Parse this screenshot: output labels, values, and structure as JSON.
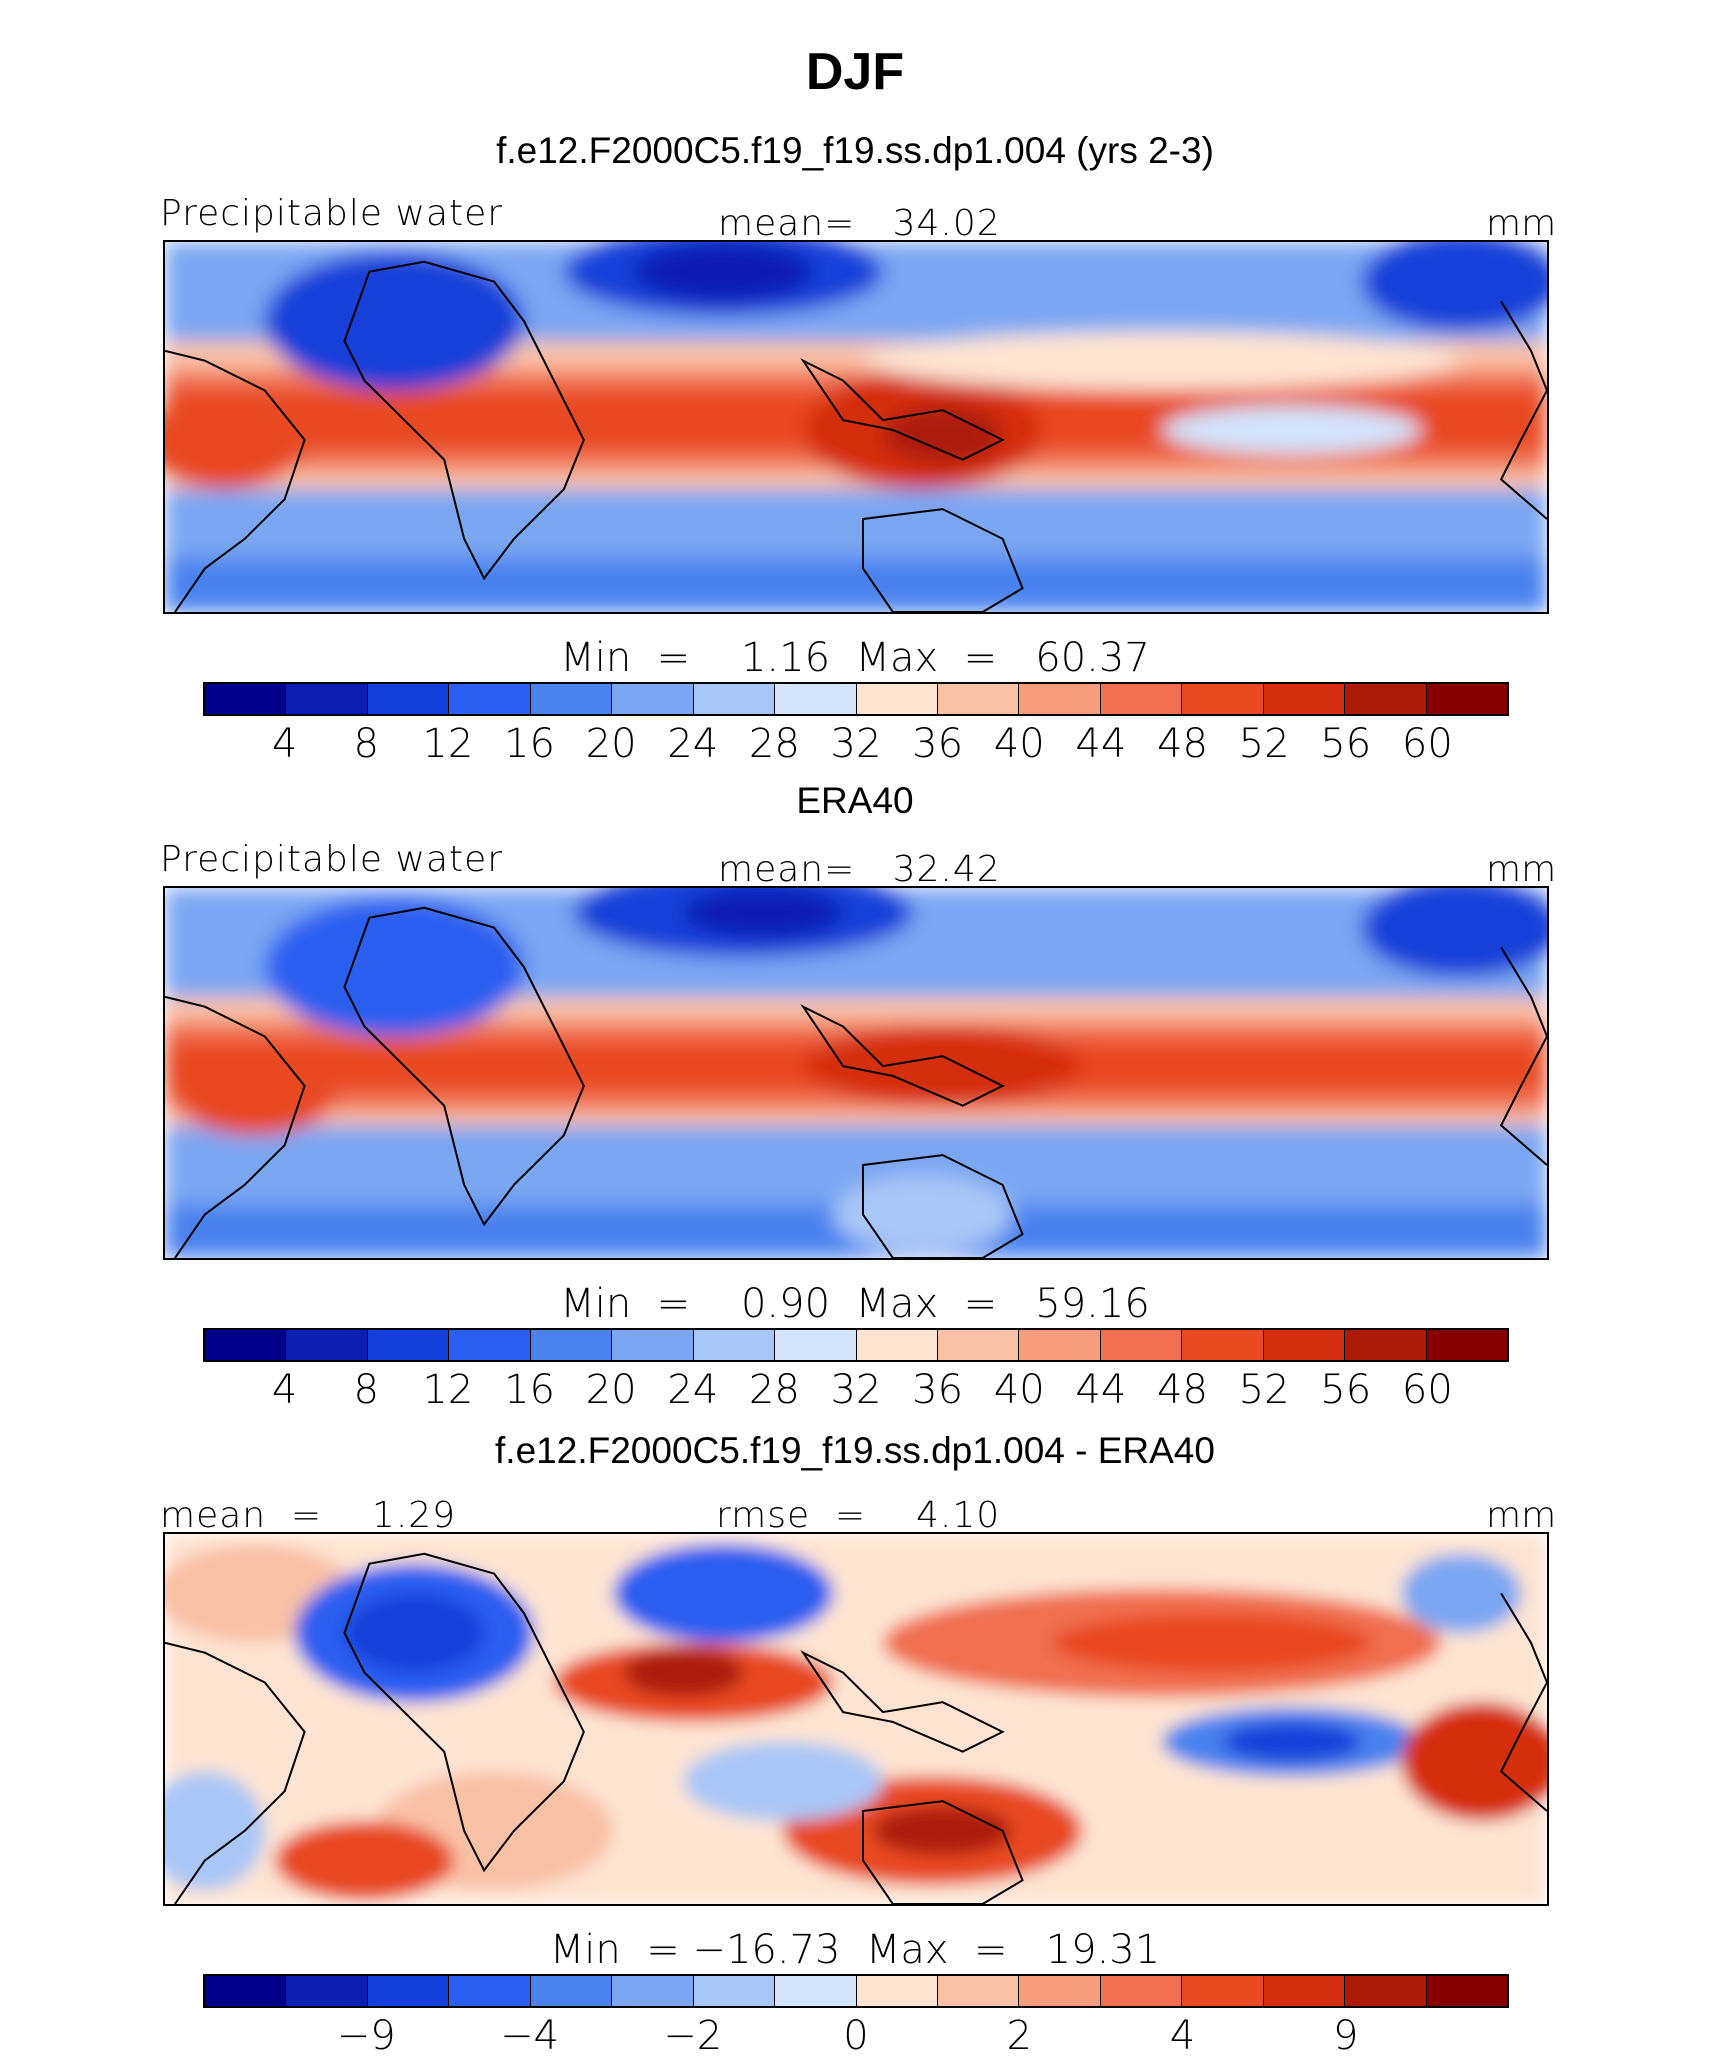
{
  "figure": {
    "title": "DJF"
  },
  "panels": [
    {
      "title": "f.e12.F2000C5.f19_f19.ss.dp1.004 (yrs 2-3)",
      "left_label": "Precipitable water",
      "center_label": "mean=   34.02",
      "unit": "mm",
      "minmax": "Min  =    1.16  Max  =   60.37",
      "colorbar_ticks": [
        "4",
        "8",
        "12",
        "16",
        "20",
        "24",
        "28",
        "32",
        "36",
        "40",
        "44",
        "48",
        "52",
        "56",
        "60"
      ]
    },
    {
      "title": "ERA40",
      "left_label": "Precipitable water",
      "center_label": "mean=   32.42",
      "unit": "mm",
      "minmax": "Min  =    0.90  Max  =   59.16",
      "colorbar_ticks": [
        "4",
        "8",
        "12",
        "16",
        "20",
        "24",
        "28",
        "32",
        "36",
        "40",
        "44",
        "48",
        "52",
        "56",
        "60"
      ]
    },
    {
      "title": "f.e12.F2000C5.f19_f19.ss.dp1.004 - ERA40",
      "left_label": "mean  =    1.29",
      "center_label": "rmse  =    4.10",
      "unit": "mm",
      "minmax": "Min  = −16.73  Max  =   19.31",
      "colorbar_ticks": [
        "−9",
        "−4",
        "−2",
        "0",
        "2",
        "4",
        "9"
      ]
    }
  ],
  "colors": {
    "palette": [
      "#00008b",
      "#0a1fb0",
      "#1240d8",
      "#2a5ff0",
      "#4a82ee",
      "#7aa6f2",
      "#a8c6f6",
      "#d3e3fa",
      "#fde4d2",
      "#f9c1a6",
      "#f59c7c",
      "#f07050",
      "#e84a22",
      "#d52e10",
      "#ac1a08",
      "#860000"
    ],
    "map_border": "#000000",
    "coastline": "#000000"
  },
  "chart_data": [
    {
      "type": "heatmap",
      "title": "f.e12.F2000C5.f19_f19.ss.dp1.004 (yrs 2-3)",
      "variable": "Precipitable water",
      "units": "mm",
      "mean": 34.02,
      "min": 1.16,
      "max": 60.37,
      "color_levels": [
        4,
        8,
        12,
        16,
        20,
        24,
        28,
        32,
        36,
        40,
        44,
        48,
        52,
        56,
        60
      ]
    },
    {
      "type": "heatmap",
      "title": "ERA40",
      "variable": "Precipitable water",
      "units": "mm",
      "mean": 32.42,
      "min": 0.9,
      "max": 59.16,
      "color_levels": [
        4,
        8,
        12,
        16,
        20,
        24,
        28,
        32,
        36,
        40,
        44,
        48,
        52,
        56,
        60
      ]
    },
    {
      "type": "heatmap",
      "title": "f.e12.F2000C5.f19_f19.ss.dp1.004 - ERA40",
      "units": "mm",
      "mean": 1.29,
      "rmse": 4.1,
      "min": -16.73,
      "max": 19.31,
      "color_levels": [
        -9,
        -4,
        -2,
        0,
        2,
        4,
        9
      ]
    }
  ]
}
